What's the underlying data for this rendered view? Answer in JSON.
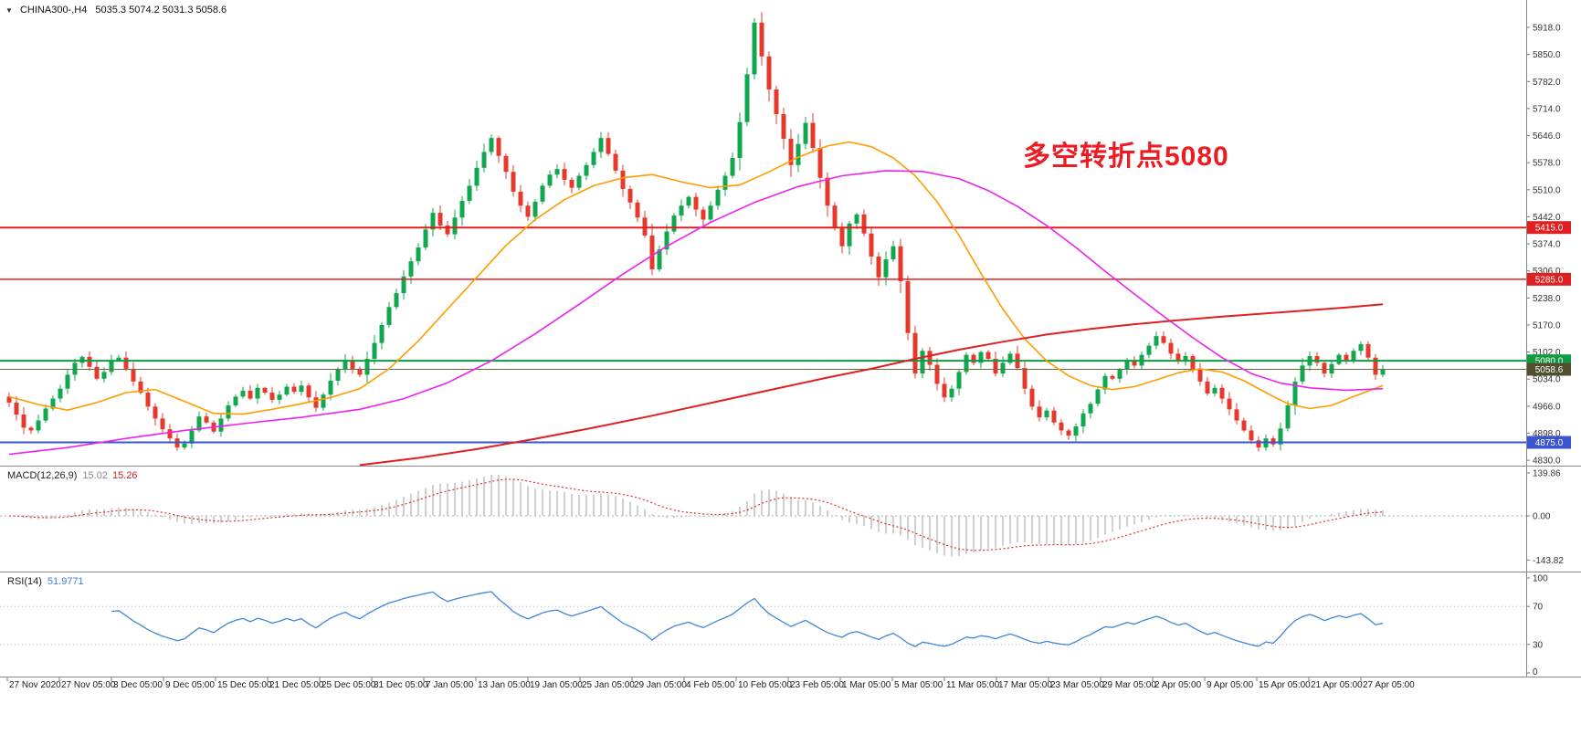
{
  "header": {
    "collapse_icon": "▼",
    "symbol_tf": "CHINA300-,H4",
    "ohlc_text": "5035.3 5074.2 5031.3 5058.6"
  },
  "annotation": {
    "text": "多空转折点5080",
    "color": "#ed1c24"
  },
  "indicators": {
    "macd": {
      "name_label": "MACD(12,26,9)",
      "value_main": "15.02",
      "value_signal": "15.26",
      "scale_labels": [
        "139.86",
        "0.00",
        "-143.82"
      ]
    },
    "rsi": {
      "name_label": "RSI(14)",
      "value": "51.9771",
      "scale_labels": [
        "100",
        "70",
        "30",
        "0"
      ]
    }
  },
  "price_axis": {
    "ticks": [
      "5918.0",
      "5850.0",
      "5782.0",
      "5714.0",
      "5646.0",
      "5578.0",
      "5510.0",
      "5442.0",
      "5374.0",
      "5306.0",
      "5238.0",
      "5170.0",
      "5102.0",
      "5034.0",
      "4966.0",
      "4898.0",
      "4830.0"
    ],
    "badges": [
      {
        "text": "5415.0",
        "price": 5415,
        "bg": "#e02020"
      },
      {
        "text": "5285.0",
        "price": 5285,
        "bg": "#e02020"
      },
      {
        "text": "5080.0",
        "price": 5080,
        "bg": "#0f9b44"
      },
      {
        "text": "5058.6",
        "price": 5058.6,
        "bg": "#50502f"
      },
      {
        "text": "4875.0",
        "price": 4875,
        "bg": "#3a55d0"
      }
    ]
  },
  "time_axis": {
    "labels": [
      "27 Nov 2020",
      "27 Nov 05:00",
      "3 Dec 05:00",
      "9 Dec 05:00",
      "15 Dec 05:00",
      "21 Dec 05:00",
      "25 Dec 05:00",
      "31 Dec 05:00",
      "7 Jan 05:00",
      "13 Jan 05:00",
      "19 Jan 05:00",
      "25 Jan 05:00",
      "29 Jan 05:00",
      "4 Feb 05:00",
      "10 Feb 05:00",
      "23 Feb 05:00",
      "1 Mar 05:00",
      "5 Mar 05:00",
      "11 Mar 05:00",
      "17 Mar 05:00",
      "23 Mar 05:00",
      "29 Mar 05:00",
      "2 Apr 05:00",
      "9 Apr 05:00",
      "15 Apr 05:00",
      "21 Apr 05:00",
      "27 Apr 05:00"
    ]
  },
  "colors": {
    "bull": "#0fa84e",
    "bear": "#e8382c",
    "background": "#ffffff",
    "separator": "#888888",
    "axis_text": "#333333"
  },
  "chart_data": {
    "type": "candlestick",
    "symbol": "CHINA300",
    "timeframe": "H4",
    "title": "CHINA300-,H4",
    "current_bar": {
      "open": 5035.3,
      "high": 5074.2,
      "low": 5031.3,
      "close": 5058.6
    },
    "visible_price_range": [
      4830,
      5918
    ],
    "candles": {
      "first_open": 4990,
      "closes": [
        4975,
        4945,
        4912,
        4905,
        4930,
        4960,
        4985,
        5010,
        5045,
        5075,
        5090,
        5065,
        5035,
        5052,
        5080,
        5088,
        5060,
        5028,
        5000,
        4965,
        4935,
        4908,
        4885,
        4862,
        4872,
        4905,
        4940,
        4925,
        4902,
        4935,
        4968,
        4990,
        5005,
        4985,
        5012,
        5000,
        4982,
        4995,
        5015,
        5002,
        5018,
        4988,
        4962,
        4995,
        5030,
        5058,
        5082,
        5060,
        5045,
        5085,
        5125,
        5170,
        5215,
        5250,
        5292,
        5330,
        5365,
        5410,
        5452,
        5420,
        5398,
        5440,
        5482,
        5520,
        5565,
        5605,
        5640,
        5595,
        5555,
        5505,
        5470,
        5442,
        5480,
        5520,
        5548,
        5562,
        5535,
        5515,
        5545,
        5572,
        5605,
        5640,
        5600,
        5558,
        5512,
        5478,
        5440,
        5395,
        5310,
        5360,
        5405,
        5445,
        5470,
        5492,
        5460,
        5435,
        5470,
        5510,
        5545,
        5590,
        5680,
        5800,
        5930,
        5845,
        5762,
        5700,
        5638,
        5572,
        5625,
        5678,
        5615,
        5540,
        5470,
        5415,
        5368,
        5425,
        5448,
        5400,
        5342,
        5290,
        5335,
        5368,
        5280,
        5150,
        5048,
        5105,
        5070,
        5022,
        4988,
        5010,
        5052,
        5095,
        5075,
        5102,
        5085,
        5048,
        5075,
        5098,
        5062,
        5010,
        4965,
        4938,
        4955,
        4925,
        4905,
        4892,
        4915,
        4948,
        4972,
        5008,
        5042,
        5035,
        5058,
        5082,
        5068,
        5095,
        5118,
        5142,
        5125,
        5098,
        5078,
        5092,
        5060,
        5028,
        4998,
        5012,
        4985,
        4958,
        4930,
        4905,
        4880,
        4862,
        4885,
        4870,
        4910,
        4968,
        5028,
        5068,
        5092,
        5075,
        5048,
        5072,
        5095,
        5082,
        5105,
        5122,
        5088,
        5045,
        5058.6
      ]
    },
    "hlines": [
      {
        "price": 5415,
        "color": "#e02020",
        "width": 2
      },
      {
        "price": 5285,
        "color": "#e02020",
        "width": 1.5
      },
      {
        "price": 5080,
        "color": "#0f9b44",
        "width": 2
      },
      {
        "price": 5058.6,
        "color": "#6a6a40",
        "width": 1
      },
      {
        "price": 4875,
        "color": "#3a55d0",
        "width": 2
      }
    ],
    "moving_averages": [
      {
        "name": "fast",
        "color": "#ff9c00",
        "width": 1.6,
        "points": [
          [
            0,
            4990
          ],
          [
            4,
            4970
          ],
          [
            8,
            4956
          ],
          [
            12,
            4975
          ],
          [
            16,
            5000
          ],
          [
            20,
            5008
          ],
          [
            24,
            4978
          ],
          [
            28,
            4948
          ],
          [
            32,
            4946
          ],
          [
            36,
            4958
          ],
          [
            40,
            4972
          ],
          [
            44,
            4988
          ],
          [
            48,
            5010
          ],
          [
            52,
            5060
          ],
          [
            56,
            5130
          ],
          [
            60,
            5210
          ],
          [
            64,
            5290
          ],
          [
            68,
            5370
          ],
          [
            72,
            5435
          ],
          [
            76,
            5485
          ],
          [
            80,
            5520
          ],
          [
            84,
            5540
          ],
          [
            88,
            5548
          ],
          [
            92,
            5530
          ],
          [
            96,
            5515
          ],
          [
            100,
            5522
          ],
          [
            104,
            5555
          ],
          [
            108,
            5592
          ],
          [
            112,
            5620
          ],
          [
            115,
            5630
          ],
          [
            118,
            5618
          ],
          [
            121,
            5590
          ],
          [
            124,
            5545
          ],
          [
            127,
            5480
          ],
          [
            130,
            5395
          ],
          [
            133,
            5300
          ],
          [
            136,
            5210
          ],
          [
            139,
            5135
          ],
          [
            142,
            5080
          ],
          [
            145,
            5042
          ],
          [
            148,
            5018
          ],
          [
            151,
            5008
          ],
          [
            154,
            5015
          ],
          [
            157,
            5032
          ],
          [
            160,
            5050
          ],
          [
            163,
            5060
          ],
          [
            166,
            5052
          ],
          [
            169,
            5030
          ],
          [
            172,
            5000
          ],
          [
            175,
            4972
          ],
          [
            178,
            4960
          ],
          [
            181,
            4968
          ],
          [
            184,
            4990
          ],
          [
            188,
            5018
          ]
        ]
      },
      {
        "name": "medium",
        "color": "#ee22ee",
        "width": 1.6,
        "points": [
          [
            0,
            4845
          ],
          [
            8,
            4862
          ],
          [
            16,
            4885
          ],
          [
            24,
            4905
          ],
          [
            32,
            4922
          ],
          [
            40,
            4938
          ],
          [
            48,
            4958
          ],
          [
            54,
            4985
          ],
          [
            60,
            5025
          ],
          [
            66,
            5080
          ],
          [
            72,
            5148
          ],
          [
            78,
            5222
          ],
          [
            84,
            5298
          ],
          [
            90,
            5368
          ],
          [
            96,
            5428
          ],
          [
            102,
            5478
          ],
          [
            108,
            5518
          ],
          [
            114,
            5545
          ],
          [
            120,
            5558
          ],
          [
            125,
            5556
          ],
          [
            130,
            5538
          ],
          [
            134,
            5508
          ],
          [
            138,
            5468
          ],
          [
            142,
            5420
          ],
          [
            146,
            5365
          ],
          [
            150,
            5305
          ],
          [
            154,
            5248
          ],
          [
            158,
            5192
          ],
          [
            162,
            5138
          ],
          [
            166,
            5088
          ],
          [
            170,
            5048
          ],
          [
            174,
            5024
          ],
          [
            178,
            5012
          ],
          [
            183,
            5006
          ],
          [
            188,
            5010
          ]
        ]
      },
      {
        "name": "slow",
        "color": "#e02020",
        "width": 2,
        "points": [
          [
            48,
            4818
          ],
          [
            56,
            4836
          ],
          [
            64,
            4858
          ],
          [
            72,
            4884
          ],
          [
            80,
            4912
          ],
          [
            88,
            4942
          ],
          [
            96,
            4974
          ],
          [
            104,
            5006
          ],
          [
            112,
            5038
          ],
          [
            118,
            5060
          ],
          [
            124,
            5085
          ],
          [
            130,
            5108
          ],
          [
            136,
            5128
          ],
          [
            142,
            5146
          ],
          [
            148,
            5160
          ],
          [
            154,
            5172
          ],
          [
            160,
            5182
          ],
          [
            166,
            5191
          ],
          [
            172,
            5199
          ],
          [
            178,
            5207
          ],
          [
            183,
            5214
          ],
          [
            188,
            5222
          ]
        ]
      }
    ],
    "macd": {
      "fast": 12,
      "slow": 26,
      "signal": 9,
      "current_main": 15.02,
      "current_signal": 15.26,
      "histogram_color": "#bbbbbb",
      "signal_color": "#e02020",
      "scale_max": 139.86,
      "scale_min": -143.82
    },
    "rsi": {
      "period": 14,
      "current": 51.9771,
      "color": "#4086d8",
      "levels": [
        30,
        70
      ],
      "range": [
        0,
        100
      ]
    }
  }
}
